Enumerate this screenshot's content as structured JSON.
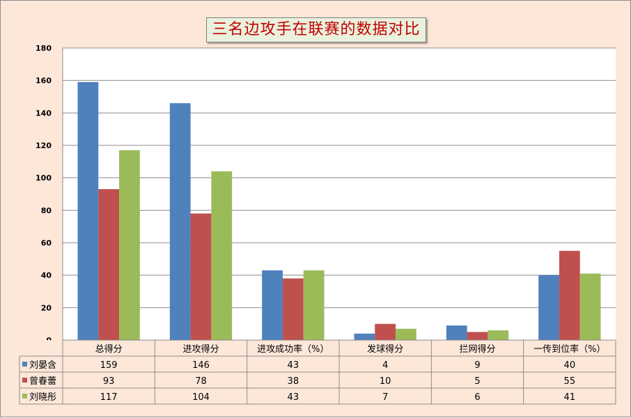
{
  "chart_data": {
    "type": "bar",
    "title": "三名边攻手在联赛的数据对比",
    "categories": [
      "总得分",
      "进攻得分",
      "进攻成功率（%）",
      "发球得分",
      "拦网得分",
      "一传到位率（%）"
    ],
    "series": [
      {
        "name": "刘晏含",
        "color": "#4f81bd",
        "values": [
          159,
          146,
          43,
          4,
          9,
          40
        ]
      },
      {
        "name": "曾春蕾",
        "color": "#c0504d",
        "values": [
          93,
          78,
          38,
          10,
          5,
          55
        ]
      },
      {
        "name": "刘晓彤",
        "color": "#9bbb59",
        "values": [
          117,
          104,
          43,
          7,
          6,
          41
        ]
      }
    ],
    "ylim": [
      0,
      180
    ],
    "yticks": [
      0,
      20,
      40,
      60,
      80,
      100,
      120,
      140,
      160,
      180
    ],
    "grid": true,
    "legend": "data-table"
  }
}
